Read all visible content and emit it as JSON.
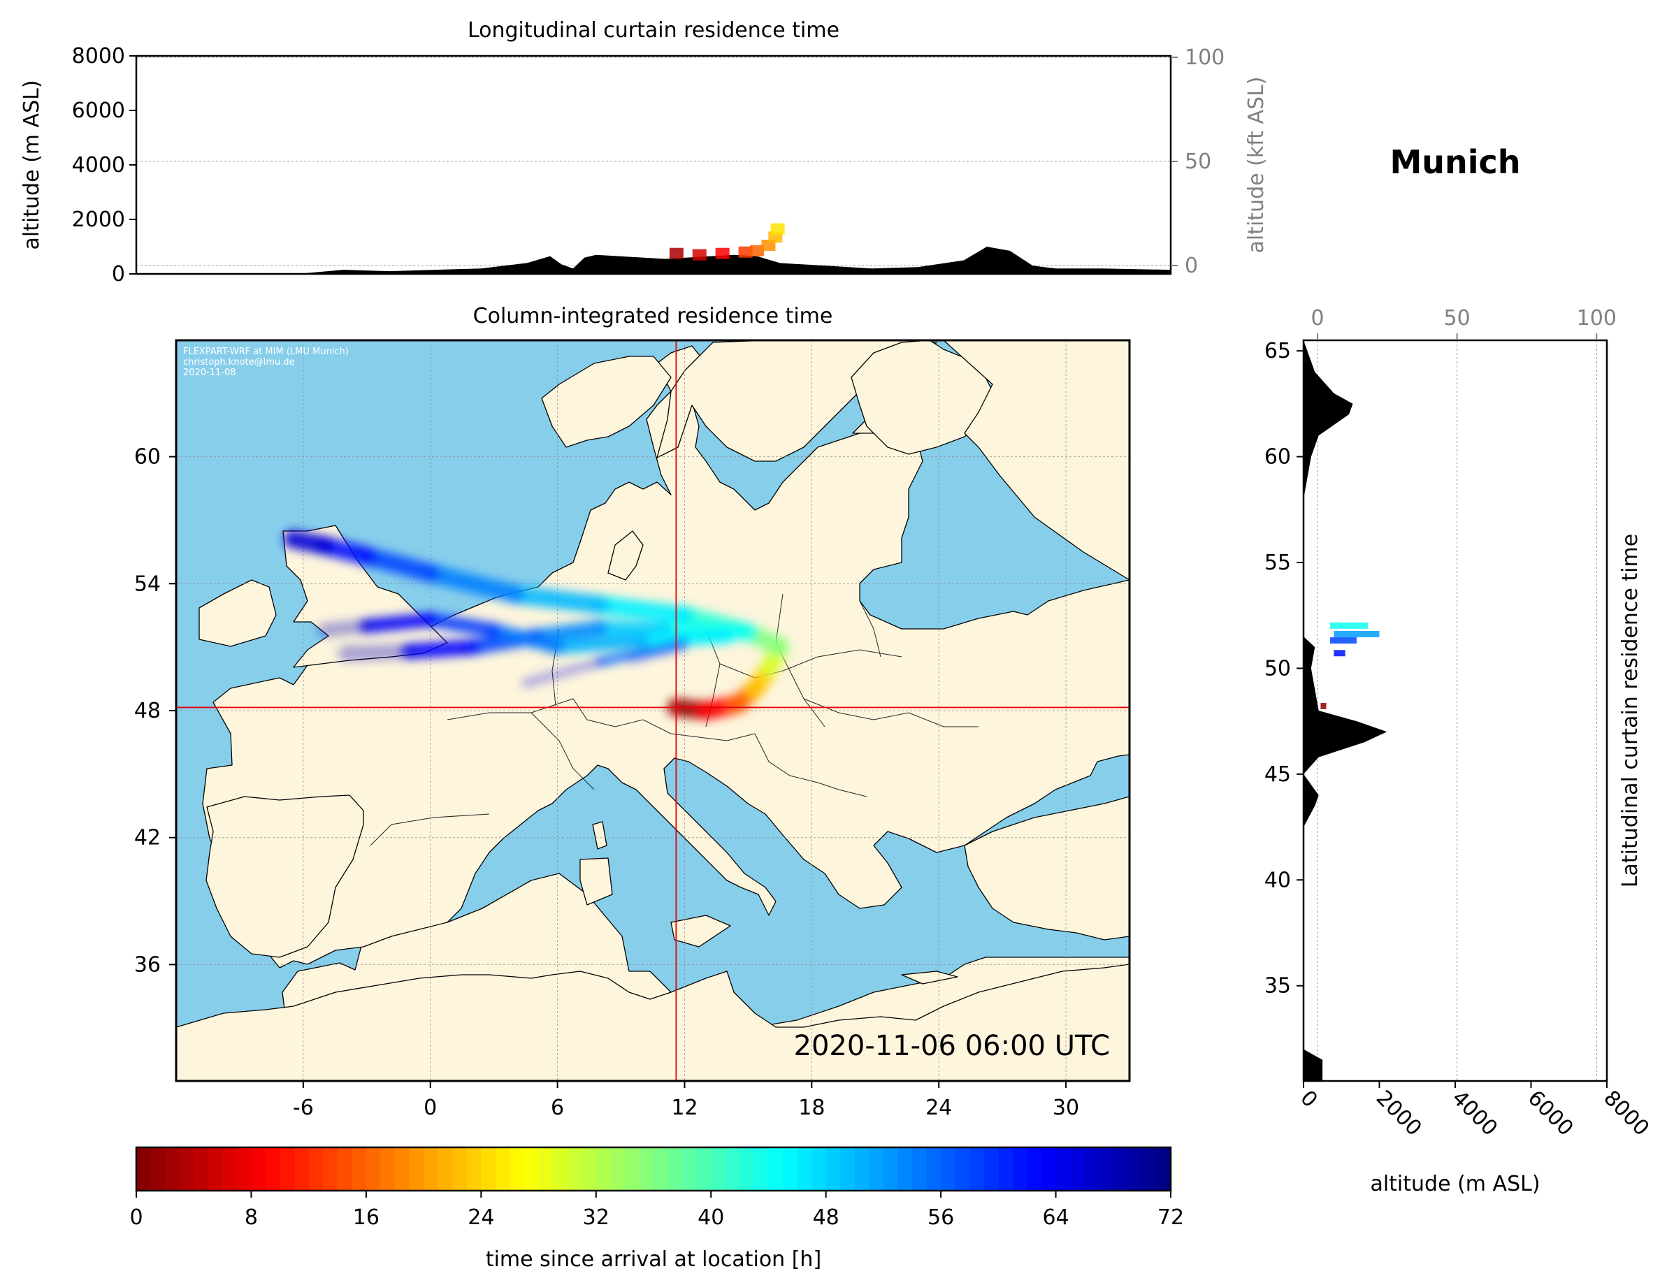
{
  "location": "Munich",
  "timestamp": "2020-11-06 06:00 UTC",
  "credit": [
    "FLEXPART-WRF at MIM (LMU Munich)",
    "christoph.knote@lmu.de",
    "2020-11-08"
  ],
  "colors": {
    "ocean": "#87ceeb",
    "land": "#fdf5dc",
    "crosshair": "#e8000b",
    "terrain": "#000000"
  },
  "chart_data": [
    {
      "type": "area",
      "title": "Longitudinal curtain residence time",
      "ylabel": "altitude (m ASL)",
      "ylabel_right": "altitude (kft ASL)",
      "ylim": [
        0,
        8000
      ],
      "yticks": [
        "0",
        "2000",
        "4000",
        "6000",
        "8000"
      ],
      "ylim_right": [
        0,
        100
      ],
      "yticks_right": [
        "0",
        "50",
        "100"
      ],
      "xlim": [
        -12,
        33
      ],
      "terrain": {
        "x": [
          -12,
          -5,
          -3,
          -1,
          1,
          3,
          5,
          6,
          6.5,
          7,
          7.5,
          8,
          9,
          11,
          13,
          14,
          15,
          16,
          18,
          20,
          22,
          24,
          25,
          26,
          27,
          28,
          30,
          33
        ],
        "y": [
          0,
          0,
          150,
          100,
          150,
          200,
          400,
          650,
          350,
          200,
          600,
          700,
          650,
          550,
          650,
          700,
          650,
          400,
          300,
          200,
          250,
          500,
          1000,
          850,
          300,
          200,
          200,
          150
        ]
      },
      "plume": [
        {
          "x": 11.5,
          "alt": 700,
          "t": 3
        },
        {
          "x": 12.5,
          "alt": 650,
          "t": 6
        },
        {
          "x": 13.5,
          "alt": 700,
          "t": 9
        },
        {
          "x": 14.5,
          "alt": 750,
          "t": 13
        },
        {
          "x": 15.0,
          "alt": 800,
          "t": 16
        },
        {
          "x": 15.5,
          "alt": 1000,
          "t": 19
        },
        {
          "x": 15.8,
          "alt": 1300,
          "t": 22
        },
        {
          "x": 15.9,
          "alt": 1600,
          "t": 25
        }
      ]
    },
    {
      "type": "heatmap",
      "title": "Column-integrated residence time",
      "xlim": [
        -12,
        33
      ],
      "ylim": [
        30.5,
        65.5
      ],
      "xticks": [
        "-6",
        "0",
        "6",
        "12",
        "18",
        "24",
        "30"
      ],
      "yticks": [
        "36",
        "42",
        "48",
        "54",
        "60"
      ],
      "release": {
        "lon": 11.6,
        "lat": 48.15
      },
      "trajectories": [
        {
          "lon": [
            11.6,
            13.0,
            14.5,
            15.3,
            16.0,
            16.5,
            15.0,
            12.0,
            8.0,
            4.0,
            0.0,
            -3.0,
            -5.0,
            -6.5
          ],
          "lat": [
            48.15,
            48.0,
            48.3,
            49.0,
            50.0,
            51.0,
            51.7,
            52.5,
            53.0,
            53.5,
            54.5,
            55.3,
            55.8,
            56.1
          ]
        },
        {
          "lon": [
            15.0,
            11.0,
            8.0,
            5.0,
            2.0,
            -1.0,
            -4.0
          ],
          "lat": [
            51.7,
            51.8,
            51.9,
            51.5,
            51.0,
            50.8,
            50.7
          ]
        },
        {
          "lon": [
            14.0,
            10.0,
            6.0,
            3.0,
            0.0,
            -3.0,
            -5.0
          ],
          "lat": [
            51.5,
            51.3,
            51.0,
            51.8,
            52.3,
            52.0,
            51.8
          ]
        },
        {
          "lon": [
            12.0,
            8.0,
            4.5
          ],
          "lat": [
            51.2,
            50.3,
            49.3
          ]
        },
        {
          "lon": [
            12.0,
            9.5
          ],
          "lat": [
            51.0,
            50.4
          ]
        }
      ]
    },
    {
      "type": "area",
      "title": "Latitudinal curtain residence time",
      "xlabel": "altitude (m ASL)",
      "xlim": [
        0,
        8000
      ],
      "xticks": [
        "0",
        "2000",
        "4000",
        "6000",
        "8000"
      ],
      "xlim_top": [
        0,
        100
      ],
      "xticks_top": [
        "0",
        "50",
        "100"
      ],
      "ylim": [
        30.5,
        65.5
      ],
      "yticks": [
        "35",
        "40",
        "45",
        "50",
        "55",
        "60",
        "65"
      ],
      "terrain": {
        "lat": [
          30.5,
          31.5,
          32,
          34,
          42.5,
          43.5,
          44,
          45,
          45.8,
          46.5,
          47.0,
          47.5,
          48.0,
          49.0,
          50.0,
          51.0,
          51.5,
          53.0,
          58.0,
          60.0,
          61.0,
          62.0,
          62.5,
          63.0,
          64.0,
          65.0,
          65.5
        ],
        "alt": [
          500,
          500,
          0,
          0,
          0,
          300,
          400,
          0,
          400,
          1600,
          2200,
          1400,
          400,
          300,
          200,
          300,
          0,
          0,
          0,
          200,
          400,
          1200,
          1300,
          800,
          300,
          100,
          0
        ]
      },
      "plume": [
        {
          "lat": 52.0,
          "alt_from": 700,
          "alt_to": 1700,
          "t": 44
        },
        {
          "lat": 51.6,
          "alt_from": 800,
          "alt_to": 2000,
          "t": 52
        },
        {
          "lat": 51.3,
          "alt_from": 700,
          "alt_to": 1400,
          "t": 58
        },
        {
          "lat": 50.7,
          "alt_from": 800,
          "alt_to": 1100,
          "t": 62
        },
        {
          "lat": 48.2,
          "alt_from": 450,
          "alt_to": 600,
          "t": 1
        }
      ]
    },
    {
      "type": "bar",
      "xlabel": "time since arrival at location [h]",
      "xlim": [
        0,
        72
      ],
      "xticks": [
        "0",
        "8",
        "16",
        "24",
        "32",
        "40",
        "48",
        "56",
        "64",
        "72"
      ],
      "colormap": "jet_r"
    }
  ]
}
